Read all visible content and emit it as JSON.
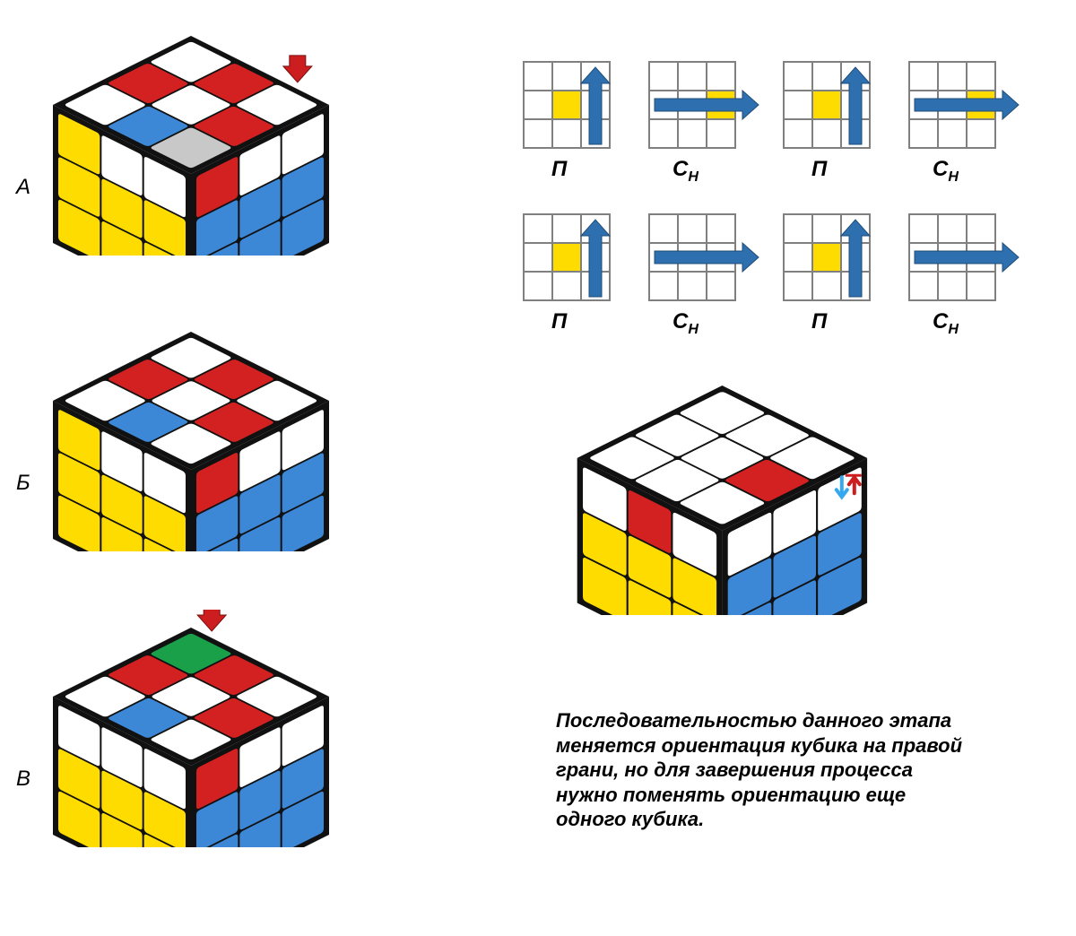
{
  "labels": {
    "a": "А",
    "b": "Б",
    "c": "В",
    "pi": "П",
    "s": "С",
    "h": "Н"
  },
  "caption": "Последовательностью данного этапа меняется ориентация кубика на правой грани, но для за­вершения процесса нужно поменять ориен­тацию еще одного кубика.",
  "colors": {
    "white": "#ffffff",
    "yellow": "#ffdc00",
    "blue": "#3c87d6",
    "red": "#d32020",
    "green": "#1ba04a",
    "grey": "#c8c8c8",
    "black": "#111111",
    "arrow": "#2e6fb0",
    "arrow_red": "#cc1e1e",
    "arrow_cyan": "#35a8f0",
    "grid": "#808080"
  },
  "cubes": {
    "A": {
      "top": [
        [
          "white",
          "red",
          "white"
        ],
        [
          "red",
          "white",
          "red"
        ],
        [
          "white",
          "blue",
          "grey"
        ]
      ],
      "left": [
        [
          "yellow",
          "white",
          "white"
        ],
        [
          "yellow",
          "yellow",
          "yellow"
        ],
        [
          "yellow",
          "yellow",
          "yellow"
        ]
      ],
      "right": [
        [
          "red",
          "white",
          "white"
        ],
        [
          "blue",
          "blue",
          "blue"
        ],
        [
          "blue",
          "blue",
          "blue"
        ]
      ],
      "arrow": {
        "pos": "top-right",
        "color": "arrow_red"
      }
    },
    "B": {
      "top": [
        [
          "white",
          "red",
          "white"
        ],
        [
          "red",
          "white",
          "red"
        ],
        [
          "white",
          "blue",
          "white"
        ]
      ],
      "left": [
        [
          "yellow",
          "white",
          "white"
        ],
        [
          "yellow",
          "yellow",
          "yellow"
        ],
        [
          "yellow",
          "yellow",
          "yellow"
        ]
      ],
      "right": [
        [
          "red",
          "white",
          "white"
        ],
        [
          "blue",
          "blue",
          "blue"
        ],
        [
          "blue",
          "blue",
          "blue"
        ]
      ]
    },
    "C": {
      "top": [
        [
          "green",
          "red",
          "white"
        ],
        [
          "red",
          "white",
          "red"
        ],
        [
          "white",
          "blue",
          "white"
        ]
      ],
      "left": [
        [
          "white",
          "white",
          "white"
        ],
        [
          "yellow",
          "yellow",
          "yellow"
        ],
        [
          "yellow",
          "yellow",
          "yellow"
        ]
      ],
      "right": [
        [
          "red",
          "white",
          "white"
        ],
        [
          "blue",
          "blue",
          "blue"
        ],
        [
          "blue",
          "blue",
          "blue"
        ]
      ],
      "arrow": {
        "pos": "top-left",
        "color": "arrow_red"
      }
    },
    "R": {
      "top": [
        [
          "white",
          "white",
          "white"
        ],
        [
          "white",
          "white",
          "red"
        ],
        [
          "white",
          "white",
          "white"
        ]
      ],
      "left": [
        [
          "white",
          "red",
          "white"
        ],
        [
          "yellow",
          "yellow",
          "yellow"
        ],
        [
          "yellow",
          "yellow",
          "yellow"
        ]
      ],
      "right": [
        [
          "white",
          "white",
          "white"
        ],
        [
          "blue",
          "blue",
          "blue"
        ],
        [
          "blue",
          "blue",
          "blue"
        ]
      ],
      "corner_arrows": true
    }
  },
  "mini_grids": [
    {
      "center": "yellow",
      "arrow": "up"
    },
    {
      "center": "white",
      "arrow": "right",
      "target": "yellow"
    },
    {
      "center": "yellow",
      "arrow": "up"
    },
    {
      "center": "white",
      "arrow": "right",
      "target": "yellow"
    },
    {
      "center": "yellow",
      "arrow": "up"
    },
    {
      "center": "white",
      "arrow": "right"
    },
    {
      "center": "yellow",
      "arrow": "up"
    },
    {
      "center": "white",
      "arrow": "right"
    }
  ]
}
